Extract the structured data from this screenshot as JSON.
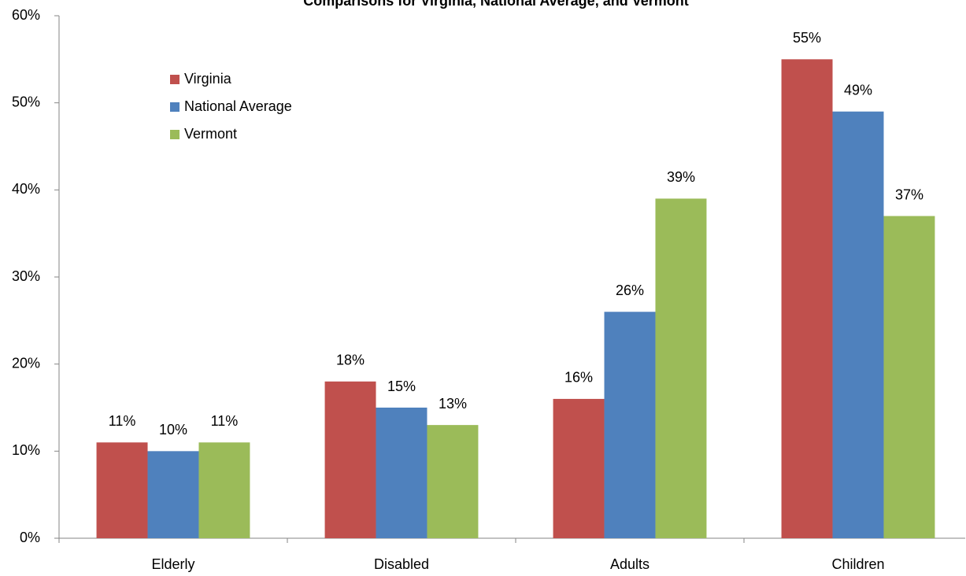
{
  "chart_data": {
    "type": "bar",
    "title": "Comparisons for Virginia, National Average, and Vermont",
    "categories": [
      "Elderly",
      "Disabled",
      "Adults",
      "Children"
    ],
    "series": [
      {
        "name": "Virginia",
        "color": "#c0504d",
        "values": [
          11,
          18,
          16,
          55
        ],
        "value_labels": [
          "11%",
          "18%",
          "16%",
          "55%"
        ]
      },
      {
        "name": "National Average",
        "color": "#4f81bd",
        "values": [
          10,
          15,
          26,
          49
        ],
        "value_labels": [
          "10%",
          "15%",
          "26%",
          "49%"
        ]
      },
      {
        "name": "Vermont",
        "color": "#9bbb59",
        "values": [
          11,
          13,
          39,
          37
        ],
        "value_labels": [
          "11%",
          "13%",
          "39%",
          "37%"
        ]
      }
    ],
    "ylim": [
      0,
      60
    ],
    "yticks": [
      {
        "value": 0,
        "label": "0%"
      },
      {
        "value": 10,
        "label": "10%"
      },
      {
        "value": 20,
        "label": "20%"
      },
      {
        "value": 30,
        "label": "30%"
      },
      {
        "value": 40,
        "label": "40%"
      },
      {
        "value": 50,
        "label": "50%"
      },
      {
        "value": 60,
        "label": "60%"
      }
    ],
    "grid": false,
    "legend": "upper-left"
  }
}
